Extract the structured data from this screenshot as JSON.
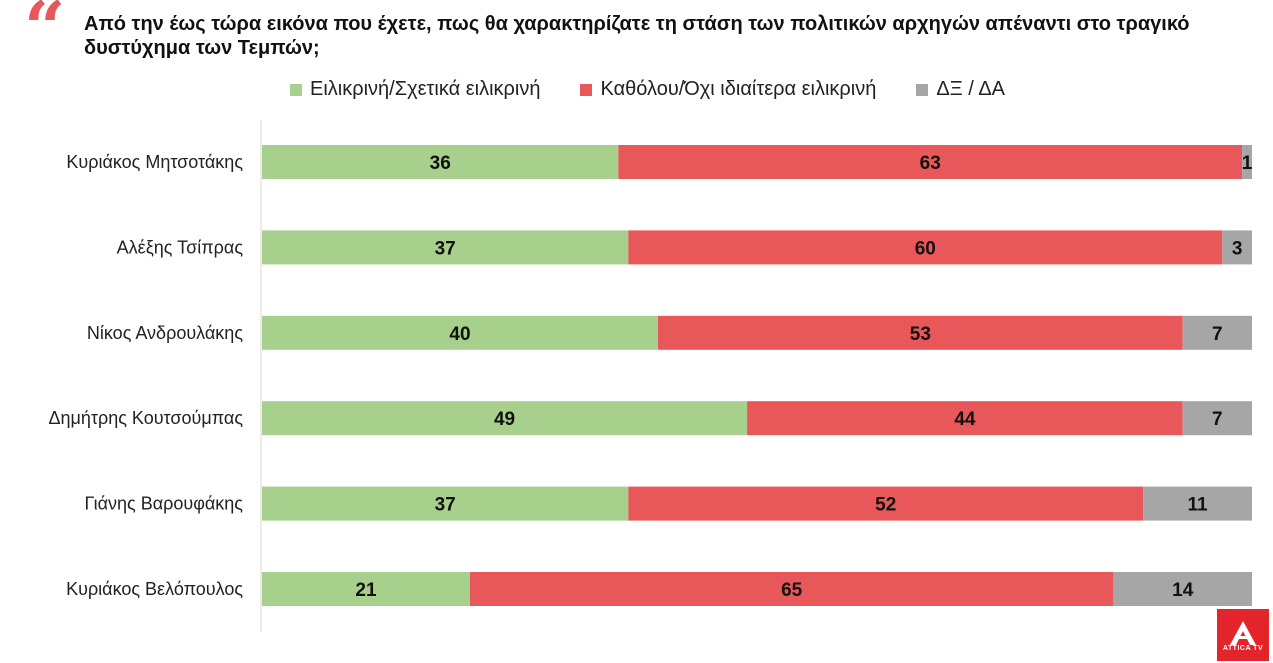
{
  "question": "Από την έως τώρα εικόνα που έχετε, πως θα χαρακτηρίζατε τη στάση των πολιτικών αρχηγών απέναντι στο τραγικό δυστύχημα των Τεμπών;",
  "logo": {
    "text": "ATTICA TV"
  },
  "colors": {
    "sincere": "#a8d08d",
    "insincere": "#e8585a",
    "dk": "#a6a6a6",
    "quote": "#e8585a"
  },
  "chart_data": {
    "type": "bar",
    "orientation": "horizontal",
    "stacked": true,
    "categories": [
      "Κυριάκος Μητσοτάκης",
      "Αλέξης Τσίπρας",
      "Νίκος Ανδρουλάκης",
      "Δημήτρης Κουτσούμπας",
      "Γιάνης Βαρουφάκης",
      "Κυριάκος Βελόπουλος"
    ],
    "series": [
      {
        "name": "Ειλικρινή/Σχετικά ειλικρινή",
        "color": "#a8d08d",
        "values": [
          36,
          37,
          40,
          49,
          37,
          21
        ]
      },
      {
        "name": "Καθόλου/Όχι ιδιαίτερα ειλικρινή",
        "color": "#e8585a",
        "values": [
          63,
          60,
          53,
          44,
          52,
          65
        ]
      },
      {
        "name": "ΔΞ / ΔΑ",
        "color": "#a6a6a6",
        "values": [
          1,
          3,
          7,
          7,
          11,
          14
        ]
      }
    ],
    "xlim": [
      0,
      100
    ],
    "legend_position": "top",
    "grid": false,
    "data_labels": true
  }
}
